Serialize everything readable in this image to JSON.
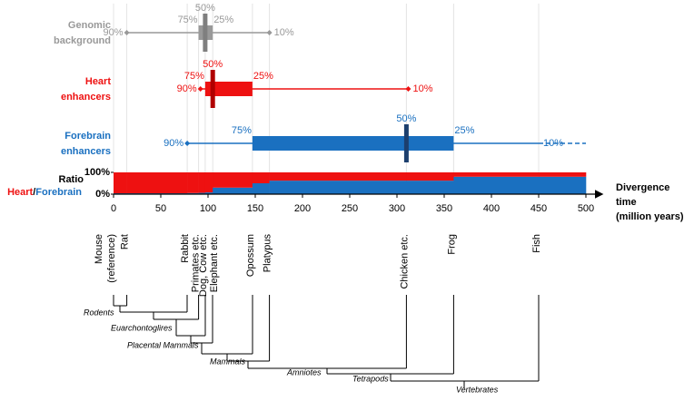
{
  "chart_data": {
    "type": "divergence-boxplot",
    "xlim": [
      0,
      500
    ],
    "xticks": [
      0,
      50,
      100,
      150,
      200,
      250,
      300,
      350,
      400,
      450,
      500
    ],
    "xlabel": [
      "Divergence",
      "time",
      "(million years)"
    ],
    "rows": [
      {
        "name": [
          "Genomic",
          "background"
        ],
        "color": "#999999",
        "median_color": "#7f7f7f",
        "percentiles": [
          {
            "label": "90%",
            "value": 14
          },
          {
            "label": "75%",
            "value": 90
          },
          {
            "label": "50%",
            "value": 97
          },
          {
            "label": "25%",
            "value": 105
          },
          {
            "label": "10%",
            "value": 165
          }
        ]
      },
      {
        "name": [
          "Heart",
          "enhancers"
        ],
        "color": "#ee1111",
        "median_color": "#b00000",
        "percentiles": [
          {
            "label": "90%",
            "value": 92
          },
          {
            "label": "75%",
            "value": 97
          },
          {
            "label": "50%",
            "value": 105
          },
          {
            "label": "25%",
            "value": 147
          },
          {
            "label": "10%",
            "value": 312
          }
        ]
      },
      {
        "name": [
          "Forebrain",
          "enhancers"
        ],
        "color": "#1a70c0",
        "median_color": "#1c3f6e",
        "extend_dashed": true,
        "percentiles": [
          {
            "label": "90%",
            "value": 78
          },
          {
            "label": "75%",
            "value": 147
          },
          {
            "label": "50%",
            "value": 310
          },
          {
            "label": "25%",
            "value": 360
          },
          {
            "label": "10%",
            "value": 450
          }
        ]
      }
    ],
    "ratio": {
      "label": "Ratio",
      "separator": "/",
      "ylim": [
        0,
        100
      ],
      "yticks": [
        {
          "value": 100,
          "label": "100%"
        },
        {
          "value": 0,
          "label": "0%"
        }
      ],
      "bins": [
        0,
        14,
        78,
        90,
        97,
        105,
        147,
        165,
        310,
        360,
        450,
        500
      ],
      "series": [
        {
          "name": "Forebrain",
          "color": "#1a70c0",
          "values": [
            4,
            4,
            5,
            6,
            8,
            30,
            50,
            62,
            62,
            80,
            80
          ]
        },
        {
          "name": "Heart",
          "color": "#ee1111",
          "values": [
            96,
            96,
            95,
            94,
            92,
            70,
            50,
            38,
            38,
            20,
            20
          ]
        }
      ]
    },
    "species": [
      {
        "label": [
          "Mouse",
          "(reference)"
        ],
        "x": 0
      },
      {
        "label": [
          "Rat"
        ],
        "x": 14
      },
      {
        "label": [
          "Rabbit"
        ],
        "x": 78
      },
      {
        "label": [
          "Primates etc."
        ],
        "x": 90
      },
      {
        "label": [
          "Dog, Cow etc."
        ],
        "x": 97
      },
      {
        "label": [
          "Elephant etc."
        ],
        "x": 105
      },
      {
        "label": [
          "Opossum"
        ],
        "x": 147
      },
      {
        "label": [
          "Platypus"
        ],
        "x": 165
      },
      {
        "label": [
          "Chicken etc."
        ],
        "x": 310
      },
      {
        "label": [
          "Frog"
        ],
        "x": 360
      },
      {
        "label": [
          "Fish"
        ],
        "x": 450
      }
    ],
    "clades": [
      "Rodents",
      "Euarchontoglires",
      "Placental Mammals",
      "Mammals",
      "Amniotes",
      "Tetrapods",
      "Vertebrates"
    ]
  }
}
